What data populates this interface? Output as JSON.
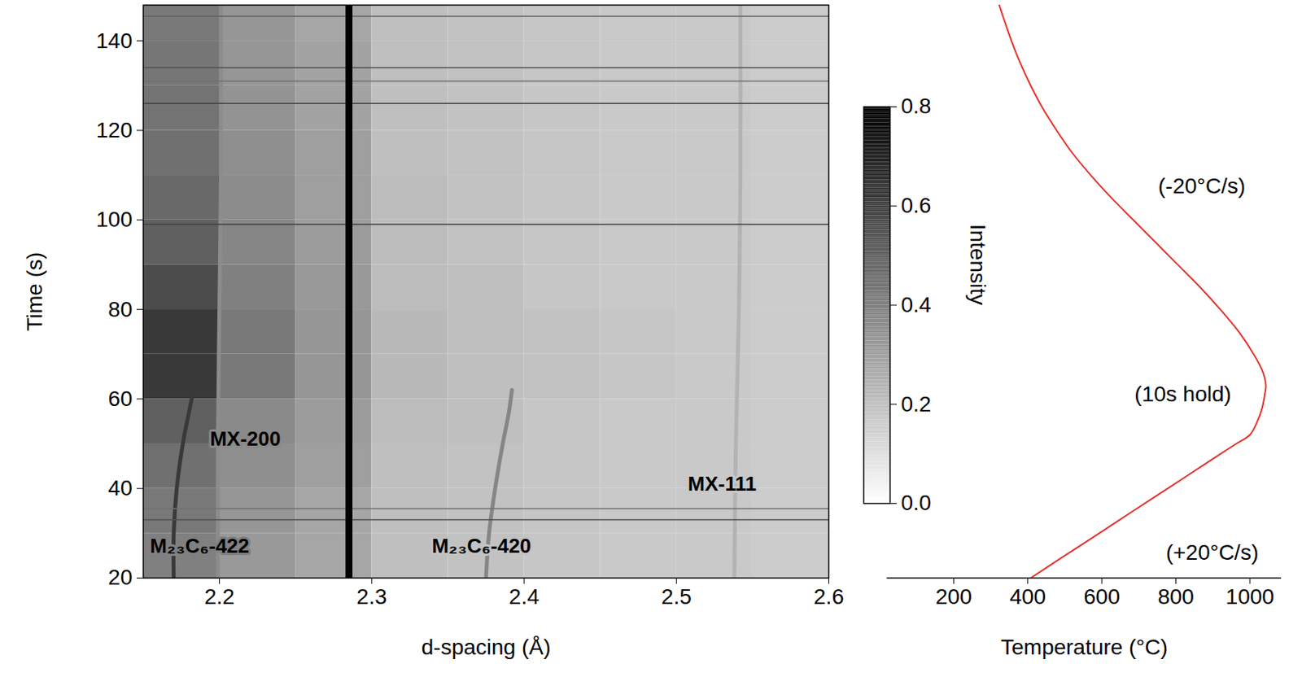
{
  "chart_data": [
    {
      "type": "heatmap",
      "xlabel": "d-spacing (Å)",
      "ylabel": "Time (s)",
      "xlim": [
        2.15,
        2.6
      ],
      "xticks": [
        2.2,
        2.3,
        2.4,
        2.5,
        2.6
      ],
      "ylim": [
        20,
        148
      ],
      "yticks": [
        20,
        40,
        60,
        80,
        100,
        120,
        140
      ],
      "cells": {
        "x_edges": [
          2.15,
          2.2,
          2.25,
          2.3,
          2.35,
          2.4,
          2.45,
          2.5,
          2.55,
          2.6
        ],
        "y_edges": [
          20,
          30,
          40,
          50,
          60,
          70,
          80,
          90,
          100,
          110,
          120,
          130,
          140,
          148
        ],
        "values": [
          [
            0.4,
            0.32,
            0.28,
            0.2,
            0.19,
            0.18,
            0.17,
            0.17,
            0.16
          ],
          [
            0.42,
            0.33,
            0.28,
            0.2,
            0.19,
            0.18,
            0.17,
            0.17,
            0.16
          ],
          [
            0.45,
            0.35,
            0.3,
            0.2,
            0.19,
            0.18,
            0.17,
            0.17,
            0.16
          ],
          [
            0.5,
            0.37,
            0.31,
            0.21,
            0.2,
            0.18,
            0.17,
            0.17,
            0.16
          ],
          [
            0.62,
            0.42,
            0.33,
            0.22,
            0.2,
            0.19,
            0.18,
            0.17,
            0.16
          ],
          [
            0.62,
            0.42,
            0.33,
            0.22,
            0.2,
            0.19,
            0.18,
            0.17,
            0.16
          ],
          [
            0.56,
            0.4,
            0.32,
            0.21,
            0.2,
            0.18,
            0.17,
            0.17,
            0.16
          ],
          [
            0.5,
            0.38,
            0.31,
            0.21,
            0.19,
            0.18,
            0.17,
            0.17,
            0.16
          ],
          [
            0.47,
            0.36,
            0.3,
            0.21,
            0.19,
            0.18,
            0.17,
            0.17,
            0.16
          ],
          [
            0.45,
            0.35,
            0.3,
            0.2,
            0.19,
            0.18,
            0.17,
            0.17,
            0.16
          ],
          [
            0.44,
            0.34,
            0.29,
            0.2,
            0.19,
            0.18,
            0.17,
            0.17,
            0.16
          ],
          [
            0.43,
            0.33,
            0.29,
            0.2,
            0.19,
            0.18,
            0.17,
            0.17,
            0.16
          ],
          [
            0.42,
            0.33,
            0.28,
            0.2,
            0.19,
            0.18,
            0.17,
            0.17,
            0.16
          ]
        ]
      },
      "colorbar": {
        "label": "Intensity",
        "range": [
          0,
          0.8
        ],
        "ticks": [
          {
            "value": 0,
            "label": "0.0"
          },
          0.2,
          0.4,
          0.6,
          0.8
        ]
      },
      "peaks": [
        {
          "d": [
            2.17,
            2.17,
            2.172,
            2.176,
            2.18,
            2.183
          ],
          "t": [
            20,
            30,
            40,
            50,
            57,
            62
          ],
          "intensity": 0.62
        },
        {
          "d": [
            2.199,
            2.199,
            2.2,
            2.201,
            2.201
          ],
          "t": [
            20,
            50,
            80,
            110,
            148
          ],
          "intensity": 0.36
        },
        {
          "d": [
            2.375,
            2.377,
            2.381,
            2.386,
            2.39,
            2.392
          ],
          "t": [
            20,
            30,
            40,
            50,
            57,
            62
          ],
          "intensity": 0.38
        },
        {
          "d": [
            2.538,
            2.539,
            2.541,
            2.542,
            2.542
          ],
          "t": [
            20,
            50,
            80,
            110,
            148
          ],
          "intensity": 0.24
        }
      ],
      "vertical_lines": [
        {
          "x": 2.285,
          "intensity": 0.8
        }
      ],
      "horizontal_lines": [
        {
          "y": 33,
          "intensity": 0.55
        },
        {
          "y": 35.5,
          "intensity": 0.45
        },
        {
          "y": 99,
          "intensity": 0.6
        },
        {
          "y": 126,
          "intensity": 0.6
        },
        {
          "y": 131,
          "intensity": 0.45
        },
        {
          "y": 134,
          "intensity": 0.55
        },
        {
          "y": 145.5,
          "intensity": 0.5
        }
      ],
      "annotations": [
        {
          "text": "M₂₃C₆-422",
          "x": 2.187,
          "y": 27
        },
        {
          "text": "MX-200",
          "x": 2.217,
          "y": 51
        },
        {
          "text": "M₂₃C₆-420",
          "x": 2.372,
          "y": 27
        },
        {
          "text": "MX-111",
          "x": 2.53,
          "y": 41
        }
      ]
    },
    {
      "type": "line",
      "xlabel": "Temperature (°C)",
      "xlim": [
        20,
        1085
      ],
      "xticks": [
        200,
        400,
        600,
        800,
        1000
      ],
      "ylim": [
        20,
        148
      ],
      "tick_labels": "x",
      "color": "#e4322b",
      "time": [
        20,
        25,
        30,
        35,
        40,
        45,
        50,
        52,
        55,
        58,
        61,
        63,
        66,
        70,
        75,
        80,
        85,
        90,
        95,
        100,
        105,
        110,
        115,
        120,
        125,
        130,
        135,
        140,
        145,
        148
      ],
      "temperature": [
        408,
        500,
        593,
        685,
        778,
        870,
        963,
        1000,
        1020,
        1033,
        1040,
        1043,
        1035,
        1010,
        970,
        920,
        865,
        805,
        745,
        685,
        625,
        570,
        520,
        478,
        440,
        408,
        380,
        356,
        335,
        323
      ],
      "annotations": [
        {
          "text": "(-20°C/s)",
          "x": 870,
          "y": 107.5
        },
        {
          "text": "(10s hold)",
          "x": 819,
          "y": 61
        },
        {
          "text": "(+20°C/s)",
          "x": 898,
          "y": 25.6
        }
      ]
    }
  ]
}
